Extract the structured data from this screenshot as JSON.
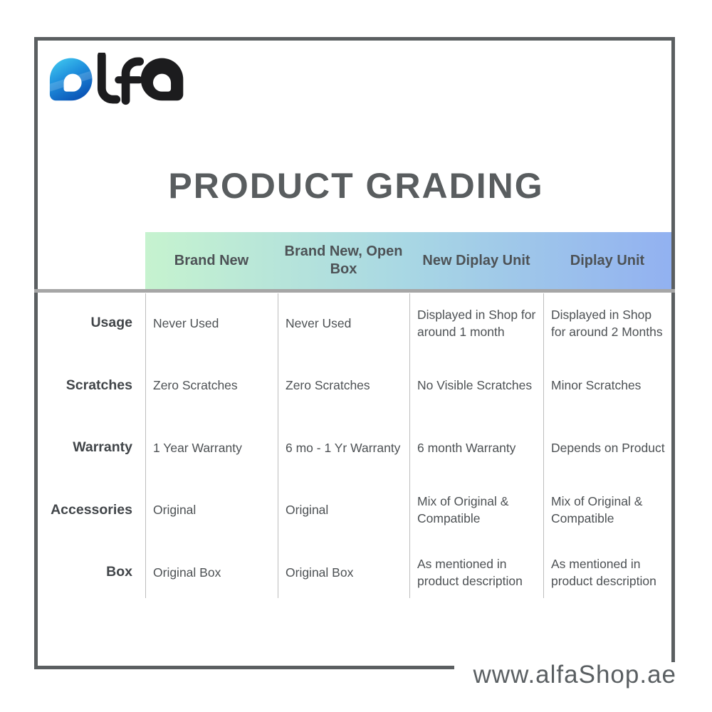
{
  "brand": {
    "logo_text": "alfa"
  },
  "title": "PRODUCT GRADING",
  "table": {
    "columns": [
      "Brand New",
      "Brand New, Open Box",
      "New Diplay Unit",
      "Diplay Unit"
    ],
    "rows": [
      {
        "label": "Usage",
        "cells": [
          "Never Used",
          "Never Used",
          "Displayed in Shop for around 1 month",
          "Displayed in Shop for around 2 Months"
        ]
      },
      {
        "label": "Scratches",
        "cells": [
          "Zero Scratches",
          "Zero Scratches",
          "No Visible Scratches",
          "Minor Scratches"
        ]
      },
      {
        "label": "Warranty",
        "cells": [
          "1 Year Warranty",
          "6 mo - 1 Yr Warranty",
          "6 month Warranty",
          "Depends on Product"
        ]
      },
      {
        "label": "Accessories",
        "cells": [
          "Original",
          "Original",
          "Mix of Original & Compatible",
          "Mix of Original & Compatible"
        ]
      },
      {
        "label": "Box",
        "cells": [
          "Original Box",
          "Original Box",
          "As mentioned in product description",
          "As mentioned in product description"
        ]
      }
    ]
  },
  "footer": {
    "website": "www.alfaShop.ae"
  },
  "colors": {
    "frame": "#5b5f61",
    "title_text": "#595d5f",
    "header_text": "#4d5256",
    "cell_text": "#4d5154",
    "label_text": "#414549",
    "header_gradient_start": "#c6f3cf",
    "header_gradient_mid": "#a8d7e4",
    "header_gradient_end": "#92b1f1",
    "logo_blue_light": "#45d0f2",
    "logo_blue_dark": "#0b57b8",
    "logo_black": "#1c1c1e"
  }
}
